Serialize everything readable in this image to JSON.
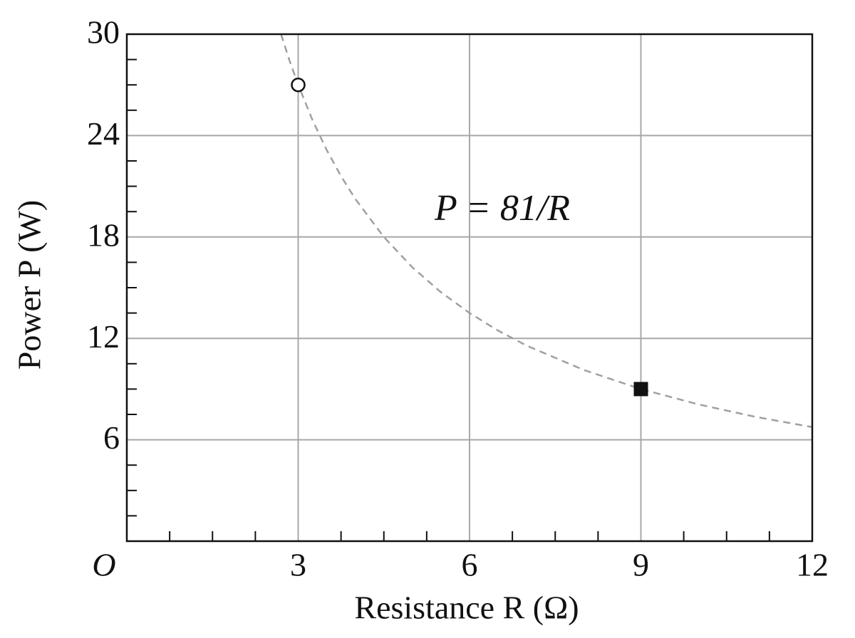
{
  "chart_data": {
    "type": "line",
    "xlabel": "Resistance R (Ω)",
    "ylabel": "Power P (W)",
    "origin_label": "O",
    "annotation": "P = 81/R",
    "xlim": [
      0,
      12
    ],
    "ylim": [
      0,
      30
    ],
    "xticks": [
      3,
      6,
      9,
      12
    ],
    "yticks": [
      6,
      12,
      18,
      24,
      30
    ],
    "xminorticks": [
      0.75,
      1.5,
      2.25,
      3.75,
      4.5,
      5.25,
      6.75,
      7.5,
      8.25,
      9.75,
      10.5,
      11.25
    ],
    "yminorticks": [
      1.5,
      3,
      4.5,
      7.5,
      9,
      10.5,
      13.5,
      15,
      16.5,
      19.5,
      21,
      22.5,
      25.5,
      27,
      28.5
    ],
    "grid": true,
    "x": [
      2.7,
      2.85,
      3,
      3.25,
      3.5,
      3.75,
      4,
      4.5,
      5,
      5.5,
      6,
      6.5,
      7,
      8,
      9,
      10,
      11,
      12
    ],
    "series": [
      {
        "color": "#a0a0a0",
        "dashed": true,
        "values": [
          30,
          28.42,
          27,
          24.92,
          23.14,
          21.6,
          20.25,
          18,
          16.2,
          14.73,
          13.5,
          12.46,
          11.57,
          10.13,
          9,
          8.1,
          7.36,
          6.75
        ]
      }
    ],
    "points": [
      {
        "x": 3,
        "y": 27,
        "marker": "open-circle"
      },
      {
        "x": 9,
        "y": 9,
        "marker": "filled-square"
      }
    ]
  }
}
